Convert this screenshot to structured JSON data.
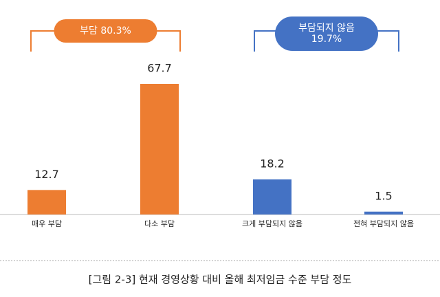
{
  "chart_data": {
    "type": "bar",
    "categories": [
      "매우 부담",
      "다소 부담",
      "크게 부담되지 않음",
      "전혀 부담되지 않음"
    ],
    "values": [
      12.7,
      67.7,
      18.2,
      1.5
    ],
    "colors": [
      "#ed7d31",
      "#ed7d31",
      "#4472c4",
      "#4472c4"
    ],
    "annotations": [
      {
        "lines": [
          "부담 80.3%"
        ],
        "color": "#ed7d31"
      },
      {
        "lines": [
          "부담되지 않음",
          "19.7%"
        ],
        "color": "#4472c4"
      }
    ],
    "caption": "[그림 2-3] 현재 경영상황 대비 올해 최저임금 수준 부담 정도"
  }
}
